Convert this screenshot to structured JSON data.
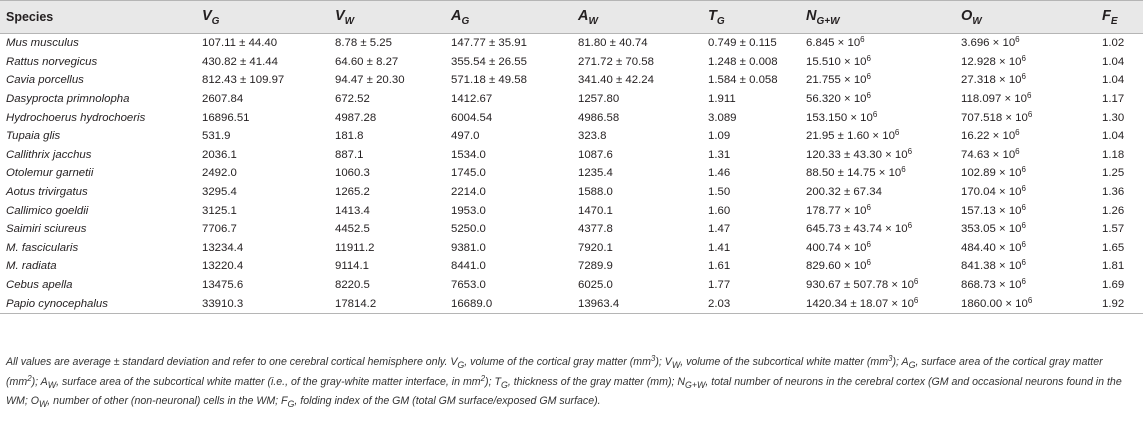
{
  "table": {
    "columns": [
      {
        "label": "Species",
        "sub": "",
        "symbol": false
      },
      {
        "label": "V",
        "sub": "G",
        "symbol": true
      },
      {
        "label": "V",
        "sub": "W",
        "symbol": true
      },
      {
        "label": "A",
        "sub": "G",
        "symbol": true
      },
      {
        "label": "A",
        "sub": "W",
        "symbol": true
      },
      {
        "label": "T",
        "sub": "G",
        "symbol": true
      },
      {
        "label": "N",
        "sub": "G+W",
        "symbol": true
      },
      {
        "label": "O",
        "sub": "W",
        "symbol": true
      },
      {
        "label": "F",
        "sub": "E",
        "symbol": true
      }
    ],
    "rows": [
      {
        "species": "Mus musculus",
        "vg": "107.11 ± 44.40",
        "vw": "8.78 ± 5.25",
        "ag": "147.77 ± 35.91",
        "aw": "81.80 ± 40.74",
        "tg": "0.749 ± 0.115",
        "ngw": "6.845 × 10",
        "ngw_exp": "6",
        "ow": "3.696 × 10",
        "ow_exp": "6",
        "fe": "1.02"
      },
      {
        "species": "Rattus norvegicus",
        "vg": "430.82 ± 41.44",
        "vw": "64.60 ± 8.27",
        "ag": "355.54 ± 26.55",
        "aw": "271.72 ± 70.58",
        "tg": "1.248 ± 0.008",
        "ngw": "15.510 × 10",
        "ngw_exp": "6",
        "ow": "12.928 × 10",
        "ow_exp": "6",
        "fe": "1.04"
      },
      {
        "species": "Cavia porcellus",
        "vg": "812.43 ± 109.97",
        "vw": "94.47 ± 20.30",
        "ag": "571.18 ± 49.58",
        "aw": "341.40 ± 42.24",
        "tg": "1.584 ± 0.058",
        "ngw": "21.755 × 10",
        "ngw_exp": "6",
        "ow": "27.318 × 10",
        "ow_exp": "6",
        "fe": "1.04"
      },
      {
        "species": "Dasyprocta primnolopha",
        "vg": "2607.84",
        "vw": "672.52",
        "ag": "1412.67",
        "aw": "1257.80",
        "tg": "1.911",
        "ngw": "56.320 × 10",
        "ngw_exp": "6",
        "ow": "118.097 × 10",
        "ow_exp": "6",
        "fe": "1.17"
      },
      {
        "species": "Hydrochoerus hydrochoeris",
        "vg": "16896.51",
        "vw": "4987.28",
        "ag": "6004.54",
        "aw": "4986.58",
        "tg": "3.089",
        "ngw": "153.150 × 10",
        "ngw_exp": "6",
        "ow": "707.518 × 10",
        "ow_exp": "6",
        "fe": "1.30"
      },
      {
        "species": "Tupaia glis",
        "vg": "531.9",
        "vw": "181.8",
        "ag": "497.0",
        "aw": "323.8",
        "tg": "1.09",
        "ngw": "21.95 ± 1.60 × 10",
        "ngw_exp": "6",
        "ow": "16.22 × 10",
        "ow_exp": "6",
        "fe": "1.04"
      },
      {
        "species": "Callithrix jacchus",
        "vg": "2036.1",
        "vw": "887.1",
        "ag": "1534.0",
        "aw": "1087.6",
        "tg": "1.31",
        "ngw": "120.33 ± 43.30 × 10",
        "ngw_exp": "6",
        "ow": "74.63 × 10",
        "ow_exp": "6",
        "fe": "1.18"
      },
      {
        "species": "Otolemur garnetii",
        "vg": "2492.0",
        "vw": "1060.3",
        "ag": "1745.0",
        "aw": "1235.4",
        "tg": "1.46",
        "ngw": "88.50 ± 14.75 × 10",
        "ngw_exp": "6",
        "ow": "102.89 × 10",
        "ow_exp": "6",
        "fe": "1.25"
      },
      {
        "species": "Aotus trivirgatus",
        "vg": "3295.4",
        "vw": "1265.2",
        "ag": "2214.0",
        "aw": "1588.0",
        "tg": "1.50",
        "ngw": "200.32 ± 67.34",
        "ngw_exp": "",
        "ow": "170.04 × 10",
        "ow_exp": "6",
        "fe": "1.36"
      },
      {
        "species": "Callimico goeldii",
        "vg": "3125.1",
        "vw": "1413.4",
        "ag": "1953.0",
        "aw": "1470.1",
        "tg": "1.60",
        "ngw": "178.77 × 10",
        "ngw_exp": "6",
        "ow": "157.13 × 10",
        "ow_exp": "6",
        "fe": "1.26"
      },
      {
        "species": "Saimiri sciureus",
        "vg": "7706.7",
        "vw": "4452.5",
        "ag": "5250.0",
        "aw": "4377.8",
        "tg": "1.47",
        "ngw": "645.73 ± 43.74 × 10",
        "ngw_exp": "6",
        "ow": "353.05 × 10",
        "ow_exp": "6",
        "fe": "1.57"
      },
      {
        "species": "M. fascicularis",
        "vg": "13234.4",
        "vw": "11911.2",
        "ag": "9381.0",
        "aw": "7920.1",
        "tg": "1.41",
        "ngw": "400.74 × 10",
        "ngw_exp": "6",
        "ow": "484.40 × 10",
        "ow_exp": "6",
        "fe": "1.65"
      },
      {
        "species": "M. radiata",
        "vg": "13220.4",
        "vw": "9114.1",
        "ag": "8441.0",
        "aw": "7289.9",
        "tg": "1.61",
        "ngw": "829.60 × 10",
        "ngw_exp": "6",
        "ow": "841.38 × 10",
        "ow_exp": "6",
        "fe": "1.81"
      },
      {
        "species": "Cebus apella",
        "vg": "13475.6",
        "vw": "8220.5",
        "ag": "7653.0",
        "aw": "6025.0",
        "tg": "1.77",
        "ngw": "930.67 ± 507.78 × 10",
        "ngw_exp": "6",
        "ow": "868.73 × 10",
        "ow_exp": "6",
        "fe": "1.69"
      },
      {
        "species": "Papio cynocephalus",
        "vg": "33910.3",
        "vw": "17814.2",
        "ag": "16689.0",
        "aw": "13963.4",
        "tg": "2.03",
        "ngw": "1420.34 ± 18.07 × 10",
        "ngw_exp": "6",
        "ow": "1860.00 × 10",
        "ow_exp": "6",
        "fe": "1.92"
      }
    ]
  },
  "footnote": {
    "line1": "All values are average ± standard deviation and refer to one cerebral cortical hemisphere only. V",
    "parts": [
      {
        "t": "All values are average ± standard deviation and refer to one cerebral cortical hemisphere only. V",
        "s": "G",
        "a": ", volume of the cortical gray matter (mm",
        "p": "3",
        "b": "); V"
      },
      {
        "t": "",
        "s": "W",
        "a": ", volume of the subcortical white matter (mm",
        "p": "3",
        "b": "); A"
      },
      {
        "t": "",
        "s": "G",
        "a": ", surface area of the cortical gray matter (mm",
        "p": "2",
        "b": "); A"
      },
      {
        "t": "",
        "s": "W",
        "a": ", surface area of the subcortical white matter (i.e., of the gray-white matter interface, in mm",
        "p": "2",
        "b": "); T"
      },
      {
        "t": "",
        "s": "G",
        "a": ", thickness of the gray matter (mm); N",
        "p": "",
        "b": ""
      },
      {
        "t": "",
        "s": "G+W",
        "a": ", total number of neurons in the cerebral cortex (GM and occasional neurons found in the WM; O",
        "p": "",
        "b": ""
      },
      {
        "t": "",
        "s": "W",
        "a": ", number of other (non-neuronal) cells in the WM; F",
        "p": "",
        "b": ""
      },
      {
        "t": "",
        "s": "G",
        "a": ", folding index of the GM (total GM surface/exposed GM surface).",
        "p": "",
        "b": ""
      }
    ]
  }
}
